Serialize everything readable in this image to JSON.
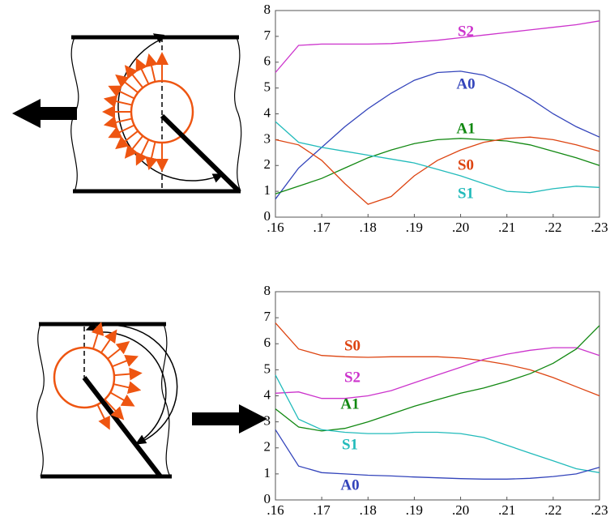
{
  "chart_data": [
    {
      "type": "line",
      "x": [
        0.16,
        0.165,
        0.17,
        0.175,
        0.18,
        0.185,
        0.19,
        0.195,
        0.2,
        0.205,
        0.21,
        0.215,
        0.22,
        0.225,
        0.23
      ],
      "xlim": [
        0.16,
        0.23
      ],
      "xticks": [
        {
          "value": 0.16,
          "label": ".16"
        },
        {
          "value": 0.17,
          "label": ".17"
        },
        {
          "value": 0.18,
          "label": ".18"
        },
        {
          "value": 0.19,
          "label": ".19"
        },
        {
          "value": 0.2,
          "label": ".20"
        },
        {
          "value": 0.21,
          "label": ".21"
        },
        {
          "value": 0.22,
          "label": ".22"
        },
        {
          "value": 0.23,
          "label": ".23"
        }
      ],
      "ylim": [
        0,
        8
      ],
      "yticks": [
        0,
        1,
        2,
        3,
        4,
        5,
        6,
        7,
        8
      ],
      "series": [
        {
          "name": "S2",
          "color": "#cc33cc",
          "values": [
            5.6,
            6.65,
            6.7,
            6.7,
            6.7,
            6.72,
            6.78,
            6.85,
            6.95,
            7.05,
            7.15,
            7.25,
            7.35,
            7.45,
            7.6
          ]
        },
        {
          "name": "A0",
          "color": "#3344bb",
          "values": [
            0.7,
            1.9,
            2.7,
            3.5,
            4.2,
            4.8,
            5.3,
            5.6,
            5.65,
            5.5,
            5.1,
            4.6,
            4.0,
            3.5,
            3.1
          ]
        },
        {
          "name": "A1",
          "color": "#118811",
          "values": [
            0.9,
            1.2,
            1.5,
            1.9,
            2.3,
            2.6,
            2.85,
            3.0,
            3.05,
            3.0,
            2.95,
            2.8,
            2.55,
            2.3,
            2.0
          ]
        },
        {
          "name": "S0",
          "color": "#dd4411",
          "values": [
            3.0,
            2.8,
            2.2,
            1.3,
            0.5,
            0.8,
            1.6,
            2.2,
            2.6,
            2.9,
            3.05,
            3.1,
            3.0,
            2.8,
            2.55
          ]
        },
        {
          "name": "S1",
          "color": "#22bbbb",
          "values": [
            3.7,
            2.9,
            2.7,
            2.55,
            2.4,
            2.25,
            2.1,
            1.85,
            1.6,
            1.3,
            1.0,
            0.95,
            1.1,
            1.2,
            1.15
          ]
        }
      ]
    },
    {
      "type": "line",
      "x": [
        0.16,
        0.165,
        0.17,
        0.175,
        0.18,
        0.185,
        0.19,
        0.195,
        0.2,
        0.205,
        0.21,
        0.215,
        0.22,
        0.225,
        0.23
      ],
      "xlim": [
        0.16,
        0.23
      ],
      "xticks": [
        {
          "value": 0.16,
          "label": ".16"
        },
        {
          "value": 0.17,
          "label": ".17"
        },
        {
          "value": 0.18,
          "label": ".18"
        },
        {
          "value": 0.19,
          "label": ".19"
        },
        {
          "value": 0.2,
          "label": ".20"
        },
        {
          "value": 0.21,
          "label": ".21"
        },
        {
          "value": 0.22,
          "label": ".22"
        },
        {
          "value": 0.23,
          "label": ".23"
        }
      ],
      "ylim": [
        0,
        8
      ],
      "yticks": [
        0,
        1,
        2,
        3,
        4,
        5,
        6,
        7,
        8
      ],
      "series": [
        {
          "name": "S0",
          "color": "#dd4411",
          "values": [
            6.8,
            5.8,
            5.55,
            5.5,
            5.48,
            5.5,
            5.5,
            5.5,
            5.45,
            5.35,
            5.2,
            5.0,
            4.7,
            4.35,
            4.0
          ]
        },
        {
          "name": "S2",
          "color": "#cc33cc",
          "values": [
            4.1,
            4.15,
            3.9,
            3.9,
            4.0,
            4.2,
            4.5,
            4.8,
            5.1,
            5.4,
            5.6,
            5.75,
            5.85,
            5.85,
            5.55
          ]
        },
        {
          "name": "A1",
          "color": "#118811",
          "values": [
            3.5,
            2.8,
            2.65,
            2.75,
            3.0,
            3.3,
            3.6,
            3.85,
            4.1,
            4.3,
            4.55,
            4.85,
            5.25,
            5.8,
            6.7
          ]
        },
        {
          "name": "S1",
          "color": "#22bbbb",
          "values": [
            4.8,
            3.1,
            2.7,
            2.6,
            2.55,
            2.55,
            2.6,
            2.6,
            2.55,
            2.4,
            2.1,
            1.8,
            1.5,
            1.2,
            1.05
          ]
        },
        {
          "name": "A0",
          "color": "#3344bb",
          "values": [
            2.7,
            1.3,
            1.05,
            1.0,
            0.95,
            0.92,
            0.88,
            0.85,
            0.82,
            0.8,
            0.8,
            0.83,
            0.9,
            1.0,
            1.25
          ]
        }
      ]
    }
  ]
}
